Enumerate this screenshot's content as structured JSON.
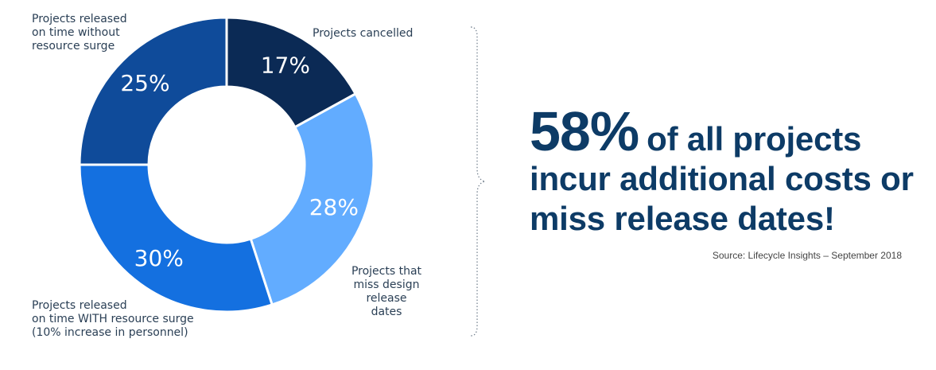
{
  "chart_data": {
    "type": "pie",
    "categories": [
      "Projects cancelled",
      "Projects that miss design release dates",
      "Projects released on time WITH resource surge (10% increase in personnel)",
      "Projects released on time without resource surge"
    ],
    "values": [
      17,
      28,
      30,
      25
    ],
    "value_labels": [
      "17%",
      "28%",
      "30%",
      "25%"
    ],
    "colors": [
      "#0b2a55",
      "#62acff",
      "#1470e0",
      "#0f4b9a"
    ],
    "donut": true
  },
  "callouts": {
    "cancelled": "Projects cancelled",
    "miss": "Projects that\nmiss design\nrelease dates",
    "with_surge": "Projects released\non time WITH resource surge\n(10% increase in personnel)",
    "without_surge": "Projects released\non time without\nresource surge"
  },
  "headline": {
    "big": "58%",
    "rest": "of all projects incur additional costs or miss release dates!"
  },
  "source": "Source: Lifecycle Insights – September 2018"
}
